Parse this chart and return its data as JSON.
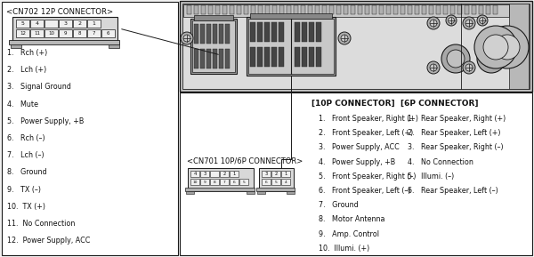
{
  "bg_color": "#f2f2f2",
  "cn702_title": "<CN702 12P CONNECTOR>",
  "cn702_items": [
    "1.   Rch (+)",
    "2.   Lch (+)",
    "3.   Signal Ground",
    "4.   Mute",
    "5.   Power Supply, +B",
    "6.   Rch (–)",
    "7.   Lch (–)",
    "8.   Ground",
    "9.   TX (–)",
    "10.  TX (+)",
    "11.  No Connection",
    "12.  Power Supply, ACC"
  ],
  "cn701_title": "<CN701 10P/6P CONNECTOR>",
  "10p_title": "[10P CONNECTOR]",
  "10p_items": [
    "1.   Front Speaker, Right (+)",
    "2.   Front Speaker, Left (+)",
    "3.   Power Supply, ACC",
    "4.   Power Supply, +B",
    "5.   Front Speaker, Right (–)",
    "6.   Front Speaker, Left (–)",
    "7.   Ground",
    "8.   Motor Antenna",
    "9.   Amp. Control",
    "10.  Illumi. (+)"
  ],
  "6p_title": "[6P CONNECTOR]",
  "6p_items": [
    "1.   Rear Speaker, Right (+)",
    "2.   Rear Speaker, Left (+)",
    "3.   Rear Speaker, Right (–)",
    "4.   No Connection",
    "5.   Illumi. (–)",
    "6.   Rear Speaker, Left (–)"
  ],
  "line_color": "#1a1a1a",
  "box_bg": "#ffffff",
  "text_color": "#111111",
  "hu_bg": "#cccccc",
  "hu_inner_bg": "#e0e0e0",
  "connector_dark": "#444444",
  "connector_mid": "#888888",
  "connector_light": "#bbbbbb"
}
